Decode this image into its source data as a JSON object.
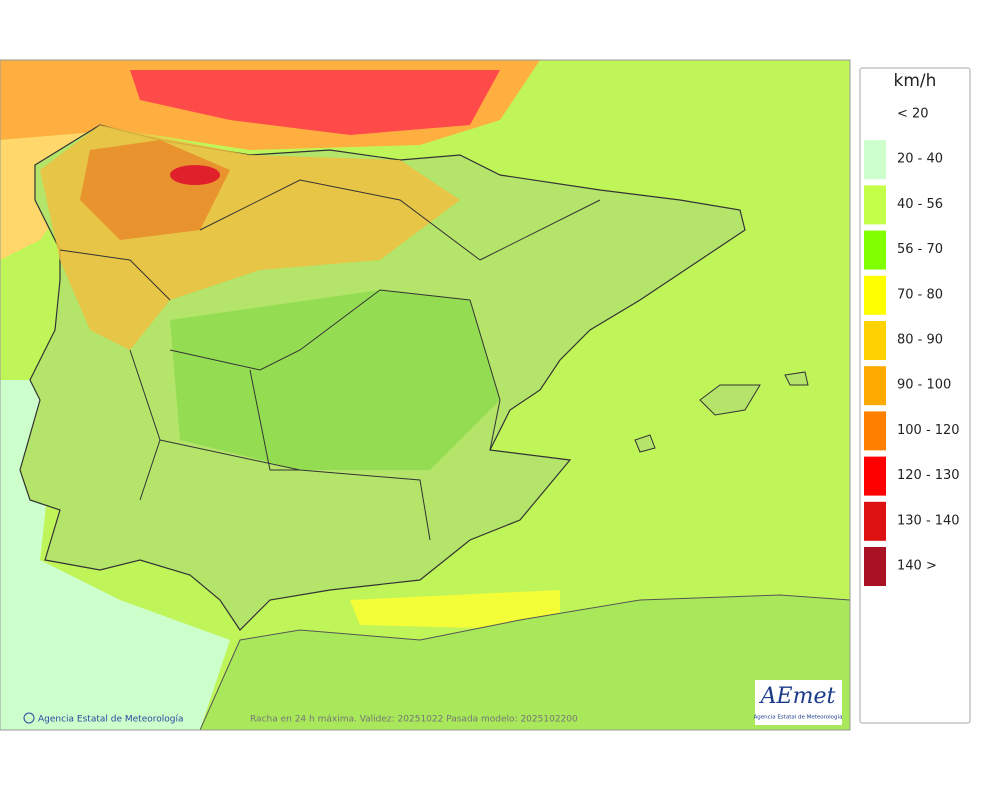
{
  "legend": {
    "title": "km/h",
    "items": [
      {
        "label": "< 20",
        "color": "#ffffff"
      },
      {
        "label": "20 - 40",
        "color": "#ccffcc"
      },
      {
        "label": "40 - 56",
        "color": "#c4ff4a"
      },
      {
        "label": "56 - 70",
        "color": "#80ff00"
      },
      {
        "label": "70 - 80",
        "color": "#ffff00"
      },
      {
        "label": "80 - 90",
        "color": "#ffd200"
      },
      {
        "label": "90 - 100",
        "color": "#ffaa00"
      },
      {
        "label": "100 - 120",
        "color": "#ff8000"
      },
      {
        "label": "120 - 130",
        "color": "#ff0000"
      },
      {
        "label": "130 - 140",
        "color": "#dd1111"
      },
      {
        "label": "140 >",
        "color": "#aa1122"
      }
    ]
  },
  "footer": {
    "credit": "Agencia Estatal de Meteorología",
    "caption": "Racha en 24 h máxima. Validez: 20251022 Pasada modelo: 2025102200"
  },
  "logo": {
    "name": "AEmet",
    "subtitle": "Agencia Estatal de Meteorología"
  }
}
